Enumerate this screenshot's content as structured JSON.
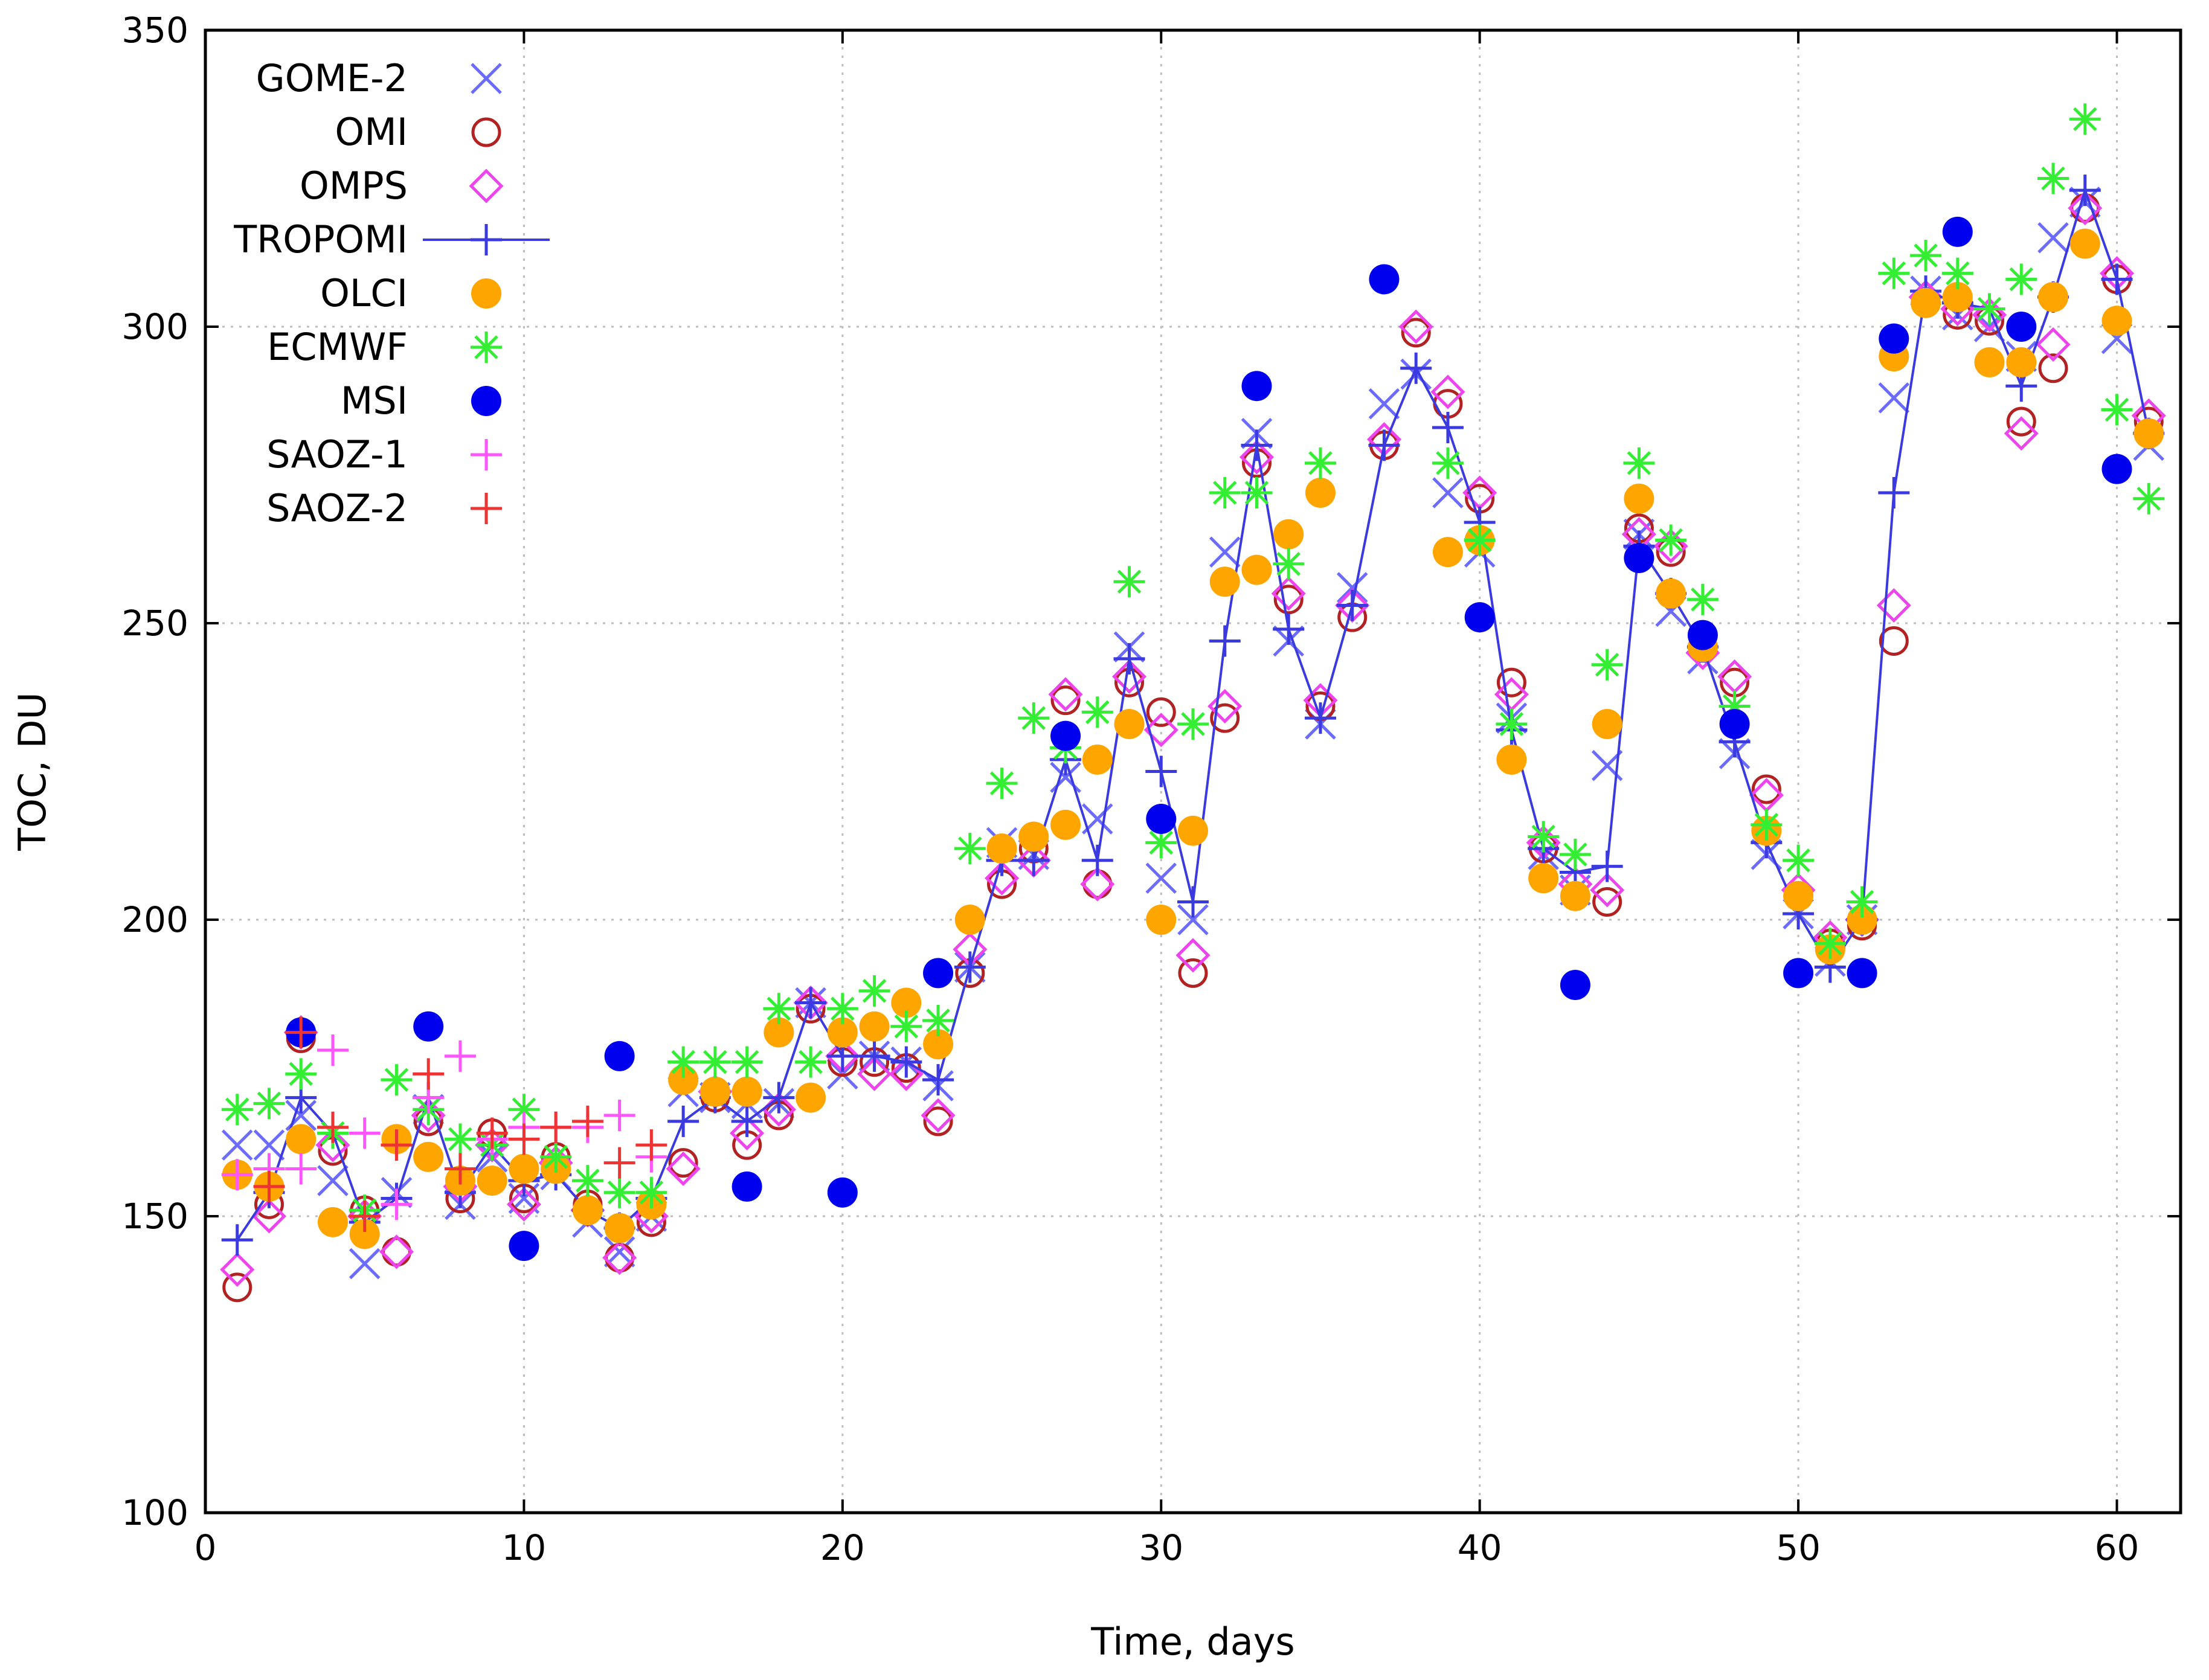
{
  "chart_data": {
    "type": "scatter",
    "title": "",
    "xlabel": "Time, days",
    "ylabel": "TOC, DU",
    "xlim": [
      0,
      62
    ],
    "ylim": [
      100,
      350
    ],
    "xticks": [
      0,
      10,
      20,
      30,
      40,
      50,
      60
    ],
    "yticks": [
      100,
      150,
      200,
      250,
      300,
      350
    ],
    "grid": true,
    "legend_position": "top-left",
    "series": [
      {
        "name": "GOME-2",
        "marker": "x",
        "color": "#6b6bff",
        "line": false,
        "x": [
          1,
          2,
          3,
          4,
          5,
          6,
          7,
          8,
          9,
          10,
          11,
          12,
          13,
          14,
          15,
          16,
          17,
          18,
          19,
          20,
          21,
          22,
          23,
          24,
          25,
          26,
          27,
          28,
          29,
          30,
          31,
          32,
          33,
          34,
          35,
          36,
          37,
          38,
          39,
          40,
          41,
          42,
          43,
          44,
          45,
          46,
          47,
          48,
          49,
          50,
          51,
          52,
          53,
          54,
          55,
          56,
          57,
          58,
          59,
          60,
          61
        ],
        "y": [
          162,
          162,
          167,
          156,
          142,
          154,
          168,
          152,
          160,
          153,
          157,
          149,
          144,
          150,
          171,
          170,
          169,
          169,
          186,
          174,
          177,
          176,
          172,
          192,
          213,
          211,
          224,
          217,
          246,
          207,
          200,
          262,
          282,
          247,
          233,
          256,
          287,
          292,
          272,
          262,
          234,
          211,
          205,
          226,
          265,
          252,
          244,
          228,
          211,
          201,
          193,
          200,
          288,
          306,
          302,
          300,
          295,
          315,
          321,
          298,
          280
        ]
      },
      {
        "name": "OMI",
        "marker": "circle-open",
        "color": "#b22222",
        "line": false,
        "x": [
          1,
          2,
          3,
          4,
          5,
          6,
          7,
          8,
          9,
          10,
          11,
          12,
          13,
          14,
          15,
          16,
          17,
          18,
          19,
          20,
          21,
          22,
          23,
          24,
          25,
          26,
          27,
          28,
          29,
          30,
          31,
          32,
          33,
          34,
          35,
          36,
          37,
          38,
          39,
          40,
          41,
          42,
          43,
          44,
          45,
          46,
          47,
          48,
          49,
          50,
          51,
          52,
          53,
          54,
          55,
          56,
          57,
          58,
          59,
          60,
          61
        ],
        "y": [
          138,
          152,
          180,
          161,
          151,
          144,
          166,
          153,
          164,
          153,
          160,
          152,
          143,
          149,
          159,
          170,
          162,
          167,
          185,
          176,
          176,
          175,
          166,
          191,
          206,
          212,
          237,
          206,
          240,
          235,
          191,
          234,
          277,
          254,
          236,
          251,
          280,
          299,
          287,
          271,
          240,
          212,
          204,
          203,
          266,
          262,
          246,
          240,
          222,
          204,
          196,
          199,
          247,
          304,
          302,
          301,
          284,
          293,
          320,
          308,
          284
        ]
      },
      {
        "name": "OMPS",
        "marker": "diamond-open",
        "color": "#ee44ee",
        "line": false,
        "x": [
          1,
          2,
          3,
          4,
          5,
          6,
          7,
          8,
          9,
          10,
          11,
          12,
          13,
          14,
          15,
          16,
          17,
          18,
          19,
          20,
          21,
          22,
          23,
          24,
          25,
          26,
          27,
          28,
          29,
          30,
          31,
          32,
          33,
          34,
          35,
          36,
          37,
          38,
          39,
          40,
          41,
          42,
          43,
          44,
          45,
          46,
          47,
          48,
          49,
          50,
          51,
          52,
          53,
          54,
          55,
          56,
          57,
          58,
          59,
          60,
          61
        ],
        "y": [
          141,
          150,
          181,
          162,
          150,
          144,
          167,
          155,
          162,
          152,
          159,
          151,
          143,
          150,
          158,
          171,
          164,
          168,
          186,
          177,
          174,
          174,
          167,
          195,
          207,
          210,
          238,
          206,
          241,
          232,
          194,
          236,
          278,
          255,
          237,
          253,
          281,
          300,
          289,
          272,
          238,
          213,
          206,
          205,
          265,
          263,
          245,
          241,
          221,
          205,
          197,
          200,
          253,
          305,
          303,
          302,
          282,
          297,
          320,
          309,
          285
        ]
      },
      {
        "name": "TROPOMI",
        "marker": "plus",
        "color": "#3a3ae0",
        "line": true,
        "x": [
          1,
          2,
          3,
          4,
          5,
          6,
          7,
          8,
          9,
          10,
          11,
          12,
          13,
          14,
          15,
          16,
          17,
          18,
          19,
          20,
          21,
          22,
          23,
          24,
          25,
          26,
          27,
          28,
          29,
          30,
          31,
          32,
          33,
          34,
          35,
          36,
          37,
          38,
          39,
          40,
          41,
          42,
          43,
          44,
          45,
          46,
          47,
          48,
          49,
          50,
          51,
          52,
          53,
          54,
          55,
          56,
          57,
          58,
          59,
          60,
          61
        ],
        "y": [
          146,
          154,
          170,
          164,
          149,
          153,
          170,
          154,
          162,
          156,
          157,
          151,
          148,
          153,
          166,
          170,
          166,
          170,
          186,
          177,
          177,
          176,
          173,
          192,
          210,
          210,
          227,
          210,
          244,
          225,
          203,
          247,
          280,
          249,
          234,
          253,
          280,
          293,
          283,
          267,
          232,
          212,
          208,
          209,
          263,
          255,
          246,
          230,
          213,
          201,
          192,
          200,
          272,
          306,
          304,
          303,
          290,
          305,
          323,
          308,
          282
        ]
      },
      {
        "name": "OLCI",
        "marker": "circle-filled",
        "color": "#ffa500",
        "line": false,
        "x": [
          1,
          2,
          3,
          4,
          5,
          6,
          7,
          8,
          9,
          10,
          11,
          12,
          13,
          14,
          15,
          16,
          17,
          18,
          19,
          20,
          21,
          22,
          23,
          24,
          25,
          26,
          27,
          28,
          29,
          30,
          31,
          32,
          33,
          34,
          35,
          36,
          37,
          38,
          39,
          40,
          41,
          42,
          43,
          44,
          45,
          46,
          47,
          48,
          49,
          50,
          51,
          52,
          53,
          54,
          55,
          56,
          57,
          58,
          59,
          60,
          61
        ],
        "y": [
          157,
          155,
          163,
          149,
          147,
          163,
          160,
          156,
          156,
          158,
          158,
          151,
          148,
          152,
          173,
          171,
          171,
          181,
          170,
          181,
          182,
          186,
          179,
          200,
          212,
          214,
          216,
          227,
          233,
          200,
          215,
          257,
          259,
          265,
          272,
          null,
          null,
          null,
          262,
          264,
          227,
          207,
          204,
          233,
          271,
          255,
          246,
          null,
          215,
          204,
          195,
          200,
          295,
          304,
          305,
          294,
          294,
          305,
          314,
          301,
          282
        ]
      },
      {
        "name": "ECMWF",
        "marker": "star",
        "color": "#33ee33",
        "line": false,
        "x": [
          1,
          2,
          3,
          4,
          5,
          6,
          7,
          8,
          9,
          10,
          11,
          12,
          13,
          14,
          15,
          16,
          17,
          18,
          19,
          20,
          21,
          22,
          23,
          24,
          25,
          26,
          27,
          28,
          29,
          30,
          31,
          32,
          33,
          34,
          35,
          36,
          37,
          38,
          39,
          40,
          41,
          42,
          43,
          44,
          45,
          46,
          47,
          48,
          49,
          50,
          51,
          52,
          53,
          54,
          55,
          56,
          57,
          58,
          59,
          60,
          61
        ],
        "y": [
          168,
          169,
          174,
          164,
          151,
          173,
          168,
          163,
          162,
          168,
          160,
          156,
          154,
          154,
          176,
          176,
          176,
          185,
          176,
          185,
          188,
          182,
          183,
          212,
          223,
          234,
          229,
          235,
          257,
          213,
          233,
          272,
          272,
          260,
          277,
          null,
          null,
          null,
          277,
          264,
          233,
          214,
          211,
          243,
          277,
          264,
          254,
          236,
          216,
          210,
          196,
          203,
          309,
          312,
          309,
          303,
          308,
          325,
          335,
          286,
          271
        ]
      },
      {
        "name": "MSI",
        "marker": "circle-filled",
        "color": "#0000ee",
        "line": false,
        "x": [
          3,
          7,
          10,
          13,
          17,
          20,
          23,
          27,
          30,
          33,
          37,
          40,
          43,
          45,
          47,
          48,
          50,
          52,
          53,
          55,
          57,
          60
        ],
        "y": [
          181,
          182,
          145,
          177,
          155,
          154,
          191,
          231,
          217,
          290,
          308,
          251,
          189,
          261,
          248,
          233,
          191,
          191,
          298,
          316,
          300,
          276
        ]
      },
      {
        "name": "SAOZ-1",
        "marker": "plus",
        "color": "#ff55ff",
        "line": false,
        "x": [
          1,
          2,
          3,
          4,
          5,
          6,
          7,
          8,
          9,
          10,
          11,
          12,
          13,
          14
        ],
        "y": [
          157,
          158,
          158,
          178,
          164,
          152,
          170,
          177,
          163,
          165,
          165,
          165,
          167,
          160
        ]
      },
      {
        "name": "SAOZ-2",
        "marker": "plus",
        "color": "#ee3333",
        "line": false,
        "x": [
          2,
          3,
          4,
          5,
          6,
          7,
          8,
          9,
          10,
          11,
          12,
          13,
          14
        ],
        "y": [
          155,
          181,
          165,
          150,
          162,
          174,
          158,
          164,
          163,
          165,
          166,
          159,
          162
        ]
      }
    ]
  }
}
